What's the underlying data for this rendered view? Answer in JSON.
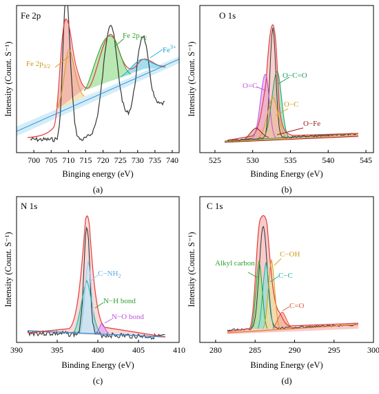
{
  "panels": [
    {
      "id": "a",
      "caption": "(a)",
      "chart_data": {
        "type": "line",
        "title": "Fe 2p",
        "xlabel": "Binging energy (eV)",
        "ylabel": "Intensity (Count. S⁻¹)",
        "xlim": [
          695,
          742
        ],
        "xticks": [
          "700",
          "705",
          "710",
          "715",
          "720",
          "725",
          "730",
          "735",
          "740"
        ],
        "ylim": [
          0,
          1
        ],
        "colors": {
          "raw": "#333333",
          "fit": "#e23b3b",
          "p32": "#d4a017",
          "p12": "#2aa02a",
          "sat": "#18b0d6",
          "bg": "#3b8fd9"
        },
        "annotations": [
          {
            "text": "Fe 2p3/2",
            "main": "Fe 2p",
            "sub": "3/2"
          },
          {
            "text": "Fe 2p1/2",
            "main": "Fe 2p",
            "sub": "1/2"
          },
          {
            "text": "Fe3+",
            "main": "Fe",
            "sup": "3+"
          }
        ],
        "peaks": [
          {
            "name": "Fe 2p3/2",
            "center": 711.5,
            "height": 0.48,
            "fwhm": 4.0
          },
          {
            "name": "Fe 2p1/2",
            "center": 724.0,
            "height": 0.42,
            "fwhm": 5.0
          },
          {
            "name": "Fe3+",
            "center": 733.0,
            "height": 0.12,
            "fwhm": 5.0
          }
        ]
      }
    },
    {
      "id": "b",
      "caption": "(b)",
      "chart_data": {
        "type": "line",
        "title": "O 1s",
        "xlabel": "Binding Energy (eV)",
        "ylabel": "Intensity (Count. S⁻¹)",
        "xlim": [
          523,
          546
        ],
        "xticks": [
          "525",
          "530",
          "535",
          "540",
          "545"
        ],
        "ylim": [
          0,
          1
        ],
        "colors": {
          "raw": "#333333",
          "fit": "#e23b3b",
          "oc": "#c04fe0",
          "oco": "#1a9d5c",
          "oc2": "#d4a017",
          "ofe": "#a01818"
        },
        "annotations": [
          {
            "text": "O=C"
          },
          {
            "text": "O−C=O"
          },
          {
            "text": "O−C"
          },
          {
            "text": "O−Fe"
          }
        ],
        "peaks": [
          {
            "name": "O=C",
            "center": 531.7,
            "height": 0.62,
            "fwhm": 1.2
          },
          {
            "name": "O−C=O",
            "center": 532.4,
            "height": 0.66,
            "fwhm": 1.2
          },
          {
            "name": "O−C",
            "center": 532.1,
            "height": 0.42,
            "fwhm": 1.5
          },
          {
            "name": "O−Fe",
            "center": 529.6,
            "height": 0.1,
            "fwhm": 1.5
          }
        ]
      }
    },
    {
      "id": "c",
      "caption": "(c)",
      "chart_data": {
        "type": "line",
        "title": "N 1s",
        "xlabel": "Binding Energy (eV)",
        "ylabel": "Intensity (Count. S⁻¹)",
        "xlim": [
          390,
          410
        ],
        "xticks": [
          "390",
          "395",
          "400",
          "405",
          "410"
        ],
        "ylim": [
          0,
          1
        ],
        "colors": {
          "raw": "#333333",
          "fit": "#e23b3b",
          "nh2": "#9ec9ea",
          "nh": "#18b0a0",
          "no": "#c04fe0",
          "bg": "#3b8fd9"
        },
        "annotations": [
          {
            "text": "C−NH2",
            "main": "C−NH",
            "sub": "2"
          },
          {
            "text": "N−H bond"
          },
          {
            "text": "N−O bond"
          }
        ],
        "peaks": [
          {
            "name": "C−NH2",
            "center": 399.8,
            "height": 0.85,
            "fwhm": 0.7
          },
          {
            "name": "N−H bond",
            "center": 399.6,
            "height": 0.66,
            "fwhm": 1.3
          },
          {
            "name": "N−O bond",
            "center": 401.2,
            "height": 0.06,
            "fwhm": 0.8
          }
        ]
      }
    },
    {
      "id": "d",
      "caption": "(d)",
      "chart_data": {
        "type": "line",
        "title": "C 1s",
        "xlabel": "Binding Energy (eV)",
        "ylabel": "Intensity (Count. S⁻¹)",
        "xlim": [
          278,
          300
        ],
        "xticks": [
          "280",
          "285",
          "290",
          "295",
          "300"
        ],
        "ylim": [
          0,
          1
        ],
        "colors": {
          "raw": "#333333",
          "fit": "#e23b3b",
          "alkyl": "#2aa02a",
          "cc": "#18b0a0",
          "coh": "#d4a017",
          "co": "#e05a3a",
          "bg": "#e07a1f"
        },
        "annotations": [
          {
            "text": "Alkyl carbon"
          },
          {
            "text": "C−OH"
          },
          {
            "text": "C−C"
          },
          {
            "text": "C=O"
          }
        ],
        "peaks": [
          {
            "name": "Alkyl carbon",
            "center": 284.8,
            "height": 0.6,
            "fwhm": 0.9
          },
          {
            "name": "C−C",
            "center": 285.8,
            "height": 0.58,
            "fwhm": 0.9
          },
          {
            "name": "C−OH",
            "center": 286.5,
            "height": 0.62,
            "fwhm": 1.0
          },
          {
            "name": "C=O",
            "center": 288.2,
            "height": 0.12,
            "fwhm": 1.1
          }
        ]
      }
    }
  ]
}
